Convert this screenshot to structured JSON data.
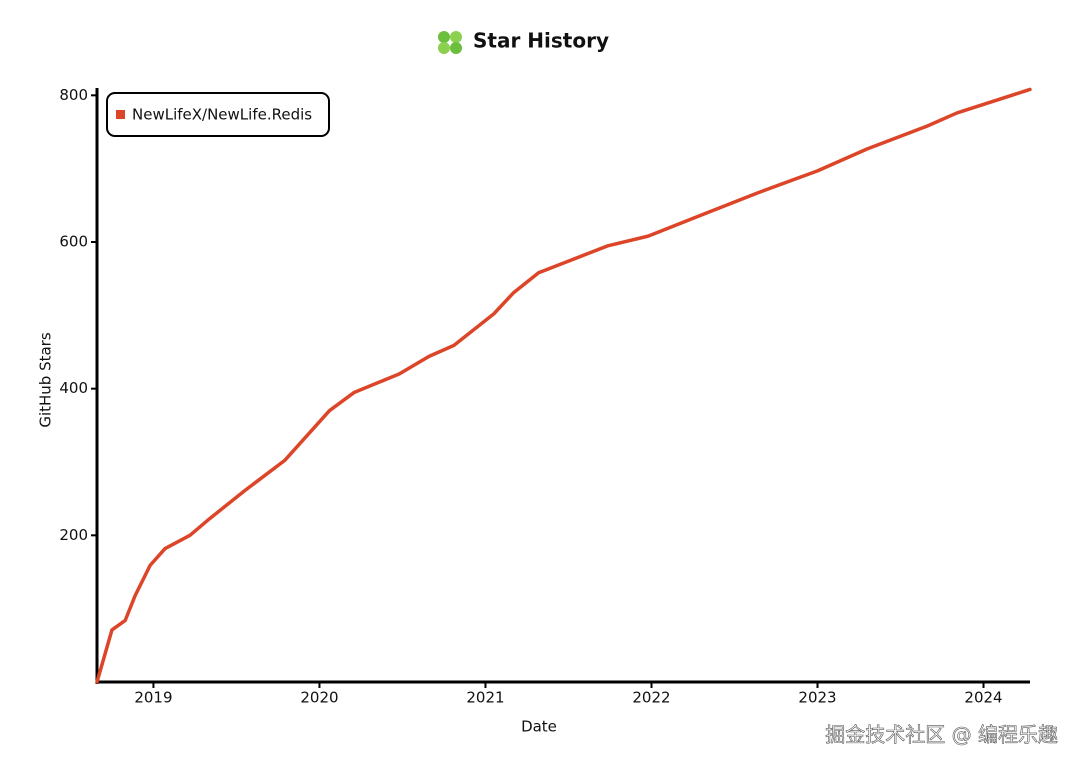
{
  "chart_data": {
    "type": "line",
    "title": "Star History",
    "x_label": "Date",
    "y_label": "GitHub Stars",
    "x": [
      2018.66,
      2018.75,
      2018.83,
      2018.89,
      2018.98,
      2019.07,
      2019.22,
      2019.34,
      2019.55,
      2019.79,
      2020.06,
      2020.21,
      2020.48,
      2020.66,
      2020.81,
      2021.05,
      2021.17,
      2021.32,
      2021.5,
      2021.74,
      2021.98,
      2022.28,
      2022.64,
      2023.0,
      2023.3,
      2023.66,
      2023.84,
      2024.28
    ],
    "series": [
      {
        "name": "NewLifeX/NewLife.Redis",
        "color": "#dd4528",
        "values": [
          0,
          71,
          84,
          118,
          159,
          182,
          200,
          223,
          261,
          302,
          370,
          395,
          420,
          444,
          459,
          502,
          531,
          558,
          574,
          595,
          608,
          635,
          667,
          697,
          727,
          758,
          776,
          808
        ]
      }
    ],
    "xlim": [
      2018.66,
      2024.28
    ],
    "xticks": [
      2019,
      2020,
      2021,
      2022,
      2023,
      2024
    ],
    "ylim": [
      0,
      810
    ],
    "yticks": [
      200,
      400,
      600,
      800
    ],
    "legend": "top-left",
    "grid": false,
    "watermark": "掘金技术社区 @ 编程乐趣"
  }
}
